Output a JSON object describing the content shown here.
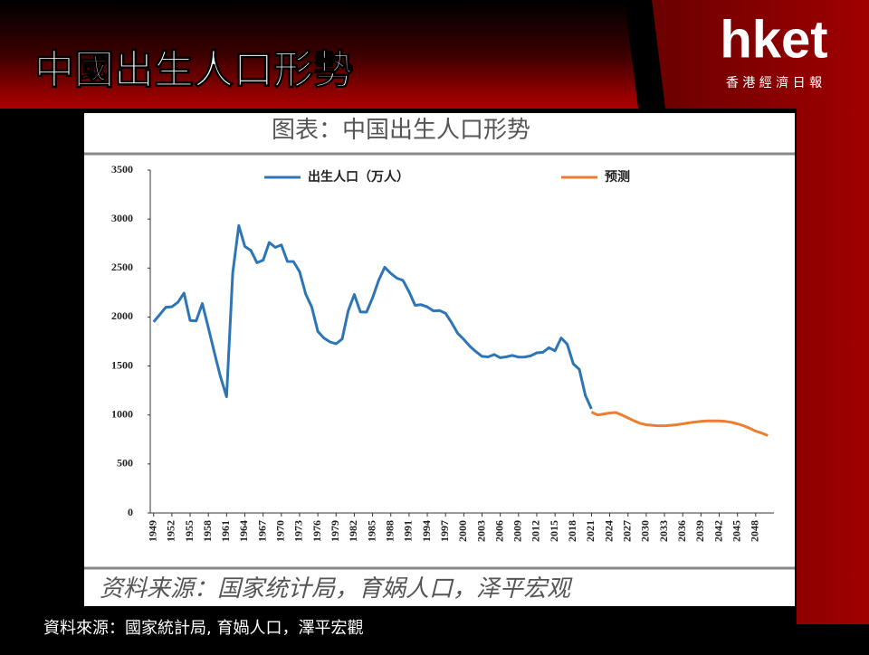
{
  "slide": {
    "title": "中國出生人口形勢",
    "logo": "hket",
    "logo_sub": "香 港 經 濟 日 報",
    "source": "資料來源：國家統計局, 育媧人口，澤平宏觀"
  },
  "chart_data": {
    "type": "line",
    "title": "图表：中国出生人口形势",
    "source": "资料来源：国家统计局，育娲人口，泽平宏观",
    "xlim": [
      1948,
      2051
    ],
    "ylim": [
      0,
      3500
    ],
    "yticks": [
      0,
      500,
      1000,
      1500,
      2000,
      2500,
      3000,
      3500
    ],
    "xticks": [
      1949,
      1952,
      1955,
      1958,
      1961,
      1964,
      1967,
      1970,
      1973,
      1976,
      1979,
      1982,
      1985,
      1988,
      1991,
      1994,
      1997,
      2000,
      2003,
      2006,
      2009,
      2012,
      2015,
      2018,
      2021,
      2024,
      2027,
      2030,
      2033,
      2036,
      2039,
      2042,
      2045,
      2048
    ],
    "series": [
      {
        "name": "出生人口（万人）",
        "color": "#2e75b6",
        "x": [
          1949,
          1950,
          1951,
          1952,
          1953,
          1954,
          1955,
          1956,
          1957,
          1958,
          1959,
          1960,
          1961,
          1962,
          1963,
          1964,
          1965,
          1966,
          1967,
          1968,
          1969,
          1970,
          1971,
          1972,
          1973,
          1974,
          1975,
          1976,
          1977,
          1978,
          1979,
          1980,
          1981,
          1982,
          1983,
          1984,
          1985,
          1986,
          1987,
          1988,
          1989,
          1990,
          1991,
          1992,
          1993,
          1994,
          1995,
          1996,
          1997,
          1998,
          1999,
          2000,
          2001,
          2002,
          2003,
          2004,
          2005,
          2006,
          2007,
          2008,
          2009,
          2010,
          2011,
          2012,
          2013,
          2014,
          2015,
          2016,
          2017,
          2018,
          2019,
          2020,
          2021
        ],
        "values": [
          1950,
          2023,
          2100,
          2105,
          2151,
          2245,
          1965,
          1961,
          2138,
          1889,
          1635,
          1389,
          1187,
          2451,
          2934,
          2721,
          2679,
          2554,
          2580,
          2760,
          2710,
          2736,
          2567,
          2566,
          2463,
          2235,
          2102,
          1853,
          1786,
          1745,
          1727,
          1776,
          2064,
          2230,
          2052,
          2050,
          2196,
          2374,
          2508,
          2445,
          2396,
          2374,
          2258,
          2119,
          2126,
          2104,
          2063,
          2067,
          2038,
          1942,
          1834,
          1771,
          1702,
          1647,
          1599,
          1593,
          1617,
          1585,
          1594,
          1608,
          1591,
          1592,
          1604,
          1635,
          1640,
          1687,
          1655,
          1786,
          1723,
          1523,
          1465,
          1200,
          1062
        ]
      },
      {
        "name": "预测",
        "color": "#ed7d31",
        "x": [
          2021,
          2022,
          2023,
          2024,
          2025,
          2026,
          2027,
          2028,
          2029,
          2030,
          2031,
          2032,
          2033,
          2034,
          2035,
          2036,
          2037,
          2038,
          2039,
          2040,
          2041,
          2042,
          2043,
          2044,
          2045,
          2046,
          2047,
          2048,
          2049,
          2050
        ],
        "values": [
          1030,
          1000,
          1010,
          1020,
          1025,
          1000,
          970,
          940,
          915,
          900,
          895,
          890,
          890,
          895,
          900,
          910,
          920,
          928,
          935,
          940,
          940,
          940,
          935,
          925,
          910,
          890,
          865,
          835,
          815,
          790
        ]
      }
    ]
  }
}
